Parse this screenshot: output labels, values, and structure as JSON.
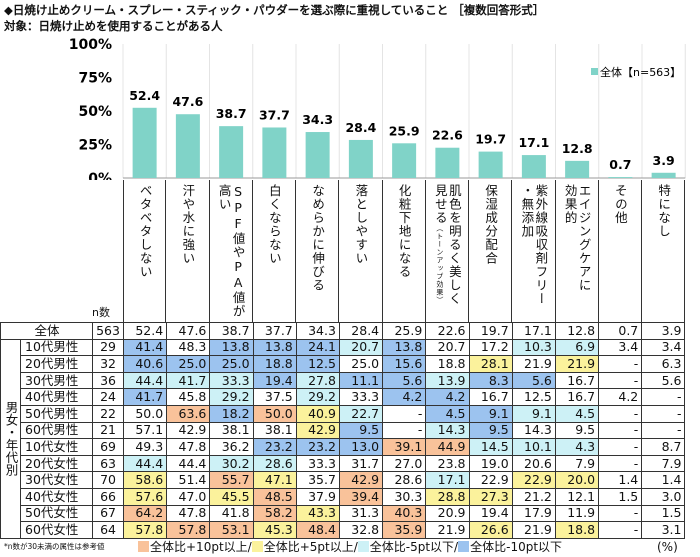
{
  "title": "◆日焼け止めクリーム・スプレー・スティック・パウダーを選ぶ際に重視していること ［複数回答形式］",
  "subtitle": "対象：日焼け止めを使用することがある人",
  "chart_data": {
    "type": "bar",
    "ylim": [
      0,
      100
    ],
    "yticks": [
      "0%",
      "25%",
      "50%",
      "75%",
      "100%"
    ],
    "grid": true,
    "legend": {
      "position": "top-right",
      "series_name": "全体【n=563】"
    },
    "bar_color": "#80d3c8",
    "categories": [
      {
        "label": "ベタベタしない"
      },
      {
        "label": "汗や水に強い"
      },
      {
        "label": "SPF値やPA値が\n高い"
      },
      {
        "label": "白くならない"
      },
      {
        "label": "なめらかに伸びる"
      },
      {
        "label": "落としやすい"
      },
      {
        "label": "化粧下地になる"
      },
      {
        "label": "肌色を明るく美しく\n見せる",
        "note": "（トーンアップ効果）"
      },
      {
        "label": "保湿成分配合"
      },
      {
        "label": "紫外線吸収剤フリー\n・無添加"
      },
      {
        "label": "エイジングケアに\n効果的"
      },
      {
        "label": "その他"
      },
      {
        "label": "特になし"
      }
    ],
    "values": [
      52.4,
      47.6,
      38.7,
      37.7,
      34.3,
      28.4,
      25.9,
      22.6,
      19.7,
      17.1,
      12.8,
      0.7,
      3.9
    ]
  },
  "table": {
    "n_header": "n数",
    "group_label": "男女・年代別",
    "total": {
      "label": "全体",
      "n": "563",
      "values": [
        "52.4",
        "47.6",
        "38.7",
        "37.7",
        "34.3",
        "28.4",
        "25.9",
        "22.6",
        "19.7",
        "17.1",
        "12.8",
        "0.7",
        "3.9"
      ]
    },
    "rows": [
      {
        "label": "10代男性",
        "n": "29",
        "values": [
          "41.4",
          "48.3",
          "13.8",
          "13.8",
          "24.1",
          "20.7",
          "13.8",
          "20.7",
          "17.2",
          "10.3",
          "6.9",
          "3.4",
          "3.4"
        ]
      },
      {
        "label": "20代男性",
        "n": "32",
        "values": [
          "40.6",
          "25.0",
          "25.0",
          "18.8",
          "12.5",
          "25.0",
          "15.6",
          "18.8",
          "28.1",
          "21.9",
          "21.9",
          "-",
          "6.3"
        ]
      },
      {
        "label": "30代男性",
        "n": "36",
        "values": [
          "44.4",
          "41.7",
          "33.3",
          "19.4",
          "27.8",
          "11.1",
          "5.6",
          "13.9",
          "8.3",
          "5.6",
          "16.7",
          "-",
          "5.6"
        ]
      },
      {
        "label": "40代男性",
        "n": "24",
        "values": [
          "41.7",
          "45.8",
          "29.2",
          "37.5",
          "29.2",
          "33.3",
          "4.2",
          "4.2",
          "16.7",
          "12.5",
          "16.7",
          "4.2",
          "-"
        ]
      },
      {
        "label": "50代男性",
        "n": "22",
        "values": [
          "50.0",
          "63.6",
          "18.2",
          "50.0",
          "40.9",
          "22.7",
          "-",
          "4.5",
          "9.1",
          "9.1",
          "4.5",
          "-",
          "-"
        ]
      },
      {
        "label": "60代男性",
        "n": "21",
        "values": [
          "57.1",
          "42.9",
          "38.1",
          "38.1",
          "42.9",
          "9.5",
          "-",
          "14.3",
          "9.5",
          "14.3",
          "9.5",
          "-",
          "-"
        ]
      },
      {
        "label": "10代女性",
        "n": "69",
        "values": [
          "49.3",
          "47.8",
          "36.2",
          "23.2",
          "23.2",
          "13.0",
          "39.1",
          "44.9",
          "14.5",
          "10.1",
          "4.3",
          "-",
          "8.7"
        ]
      },
      {
        "label": "20代女性",
        "n": "63",
        "values": [
          "44.4",
          "44.4",
          "30.2",
          "28.6",
          "33.3",
          "31.7",
          "27.0",
          "23.8",
          "19.0",
          "20.6",
          "7.9",
          "-",
          "7.9"
        ]
      },
      {
        "label": "30代女性",
        "n": "70",
        "values": [
          "58.6",
          "51.4",
          "55.7",
          "47.1",
          "35.7",
          "42.9",
          "28.6",
          "17.1",
          "22.9",
          "22.9",
          "20.0",
          "1.4",
          "1.4"
        ]
      },
      {
        "label": "40代女性",
        "n": "66",
        "values": [
          "57.6",
          "47.0",
          "45.5",
          "48.5",
          "37.9",
          "39.4",
          "30.3",
          "28.8",
          "27.3",
          "21.2",
          "12.1",
          "1.5",
          "3.0"
        ]
      },
      {
        "label": "50代女性",
        "n": "67",
        "values": [
          "64.2",
          "47.8",
          "41.8",
          "58.2",
          "43.3",
          "31.3",
          "40.3",
          "20.9",
          "19.4",
          "17.9",
          "11.9",
          "-",
          "1.5"
        ]
      },
      {
        "label": "60代女性",
        "n": "64",
        "values": [
          "57.8",
          "57.8",
          "53.1",
          "45.3",
          "48.4",
          "32.8",
          "35.9",
          "21.9",
          "26.6",
          "21.9",
          "18.8",
          "-",
          "3.1"
        ]
      }
    ]
  },
  "highlight": {
    "plus10": {
      "label": "全体比+10pt以上/",
      "color": "#f9c29a"
    },
    "plus5": {
      "label": "全体比+5pt以上/",
      "color": "#fbf29c"
    },
    "minus5": {
      "label": "全体比-5pt以下/",
      "color": "#cdf1f6"
    },
    "minus10": {
      "label": "全体比-10pt以下",
      "color": "#9cc3ef"
    }
  },
  "footer_note": "*n数が30未満の属性は参考値",
  "unit": "(%)"
}
